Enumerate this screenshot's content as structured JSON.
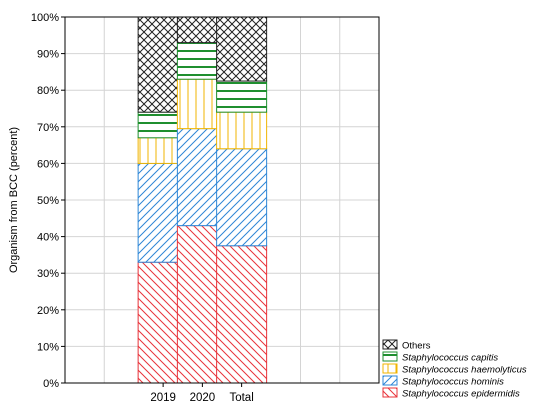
{
  "chart_data": {
    "type": "bar",
    "stacked": true,
    "title": "",
    "xlabel": "",
    "ylabel": "Organism from BCC (percent)",
    "ylim": [
      0,
      100
    ],
    "y_ticks": [
      "0%",
      "10%",
      "20%",
      "30%",
      "40%",
      "50%",
      "60%",
      "70%",
      "80%",
      "90%",
      "100%"
    ],
    "categories": [
      "2019",
      "2020",
      "Total"
    ],
    "grid": true,
    "legend_position": "bottom-right",
    "series": [
      {
        "name": "Staphylococcus epidermidis",
        "values": [
          33,
          43,
          37.5
        ],
        "color": "#e8333a",
        "pattern": "hatch-backslash"
      },
      {
        "name": "Staphylococcus hominis",
        "values": [
          27,
          26.5,
          26.5
        ],
        "color": "#2e86d6",
        "pattern": "hatch-slash"
      },
      {
        "name": "Staphylococcus haemolyticus",
        "values": [
          7,
          13.5,
          10
        ],
        "color": "#f0b400",
        "pattern": "vertical-lines"
      },
      {
        "name": "Staphylococcus capitis",
        "values": [
          7,
          10,
          8.5
        ],
        "color": "#1f8f2f",
        "pattern": "horizontal-lines"
      },
      {
        "name": "Others",
        "values": [
          26,
          7,
          17.5
        ],
        "color": "#222222",
        "pattern": "crosshatch"
      }
    ],
    "legend_order": [
      "Others",
      "Staphylococcus capitis",
      "Staphylococcus haemolyticus",
      "Staphylococcus hominis",
      "Staphylococcus epidermidis"
    ]
  }
}
